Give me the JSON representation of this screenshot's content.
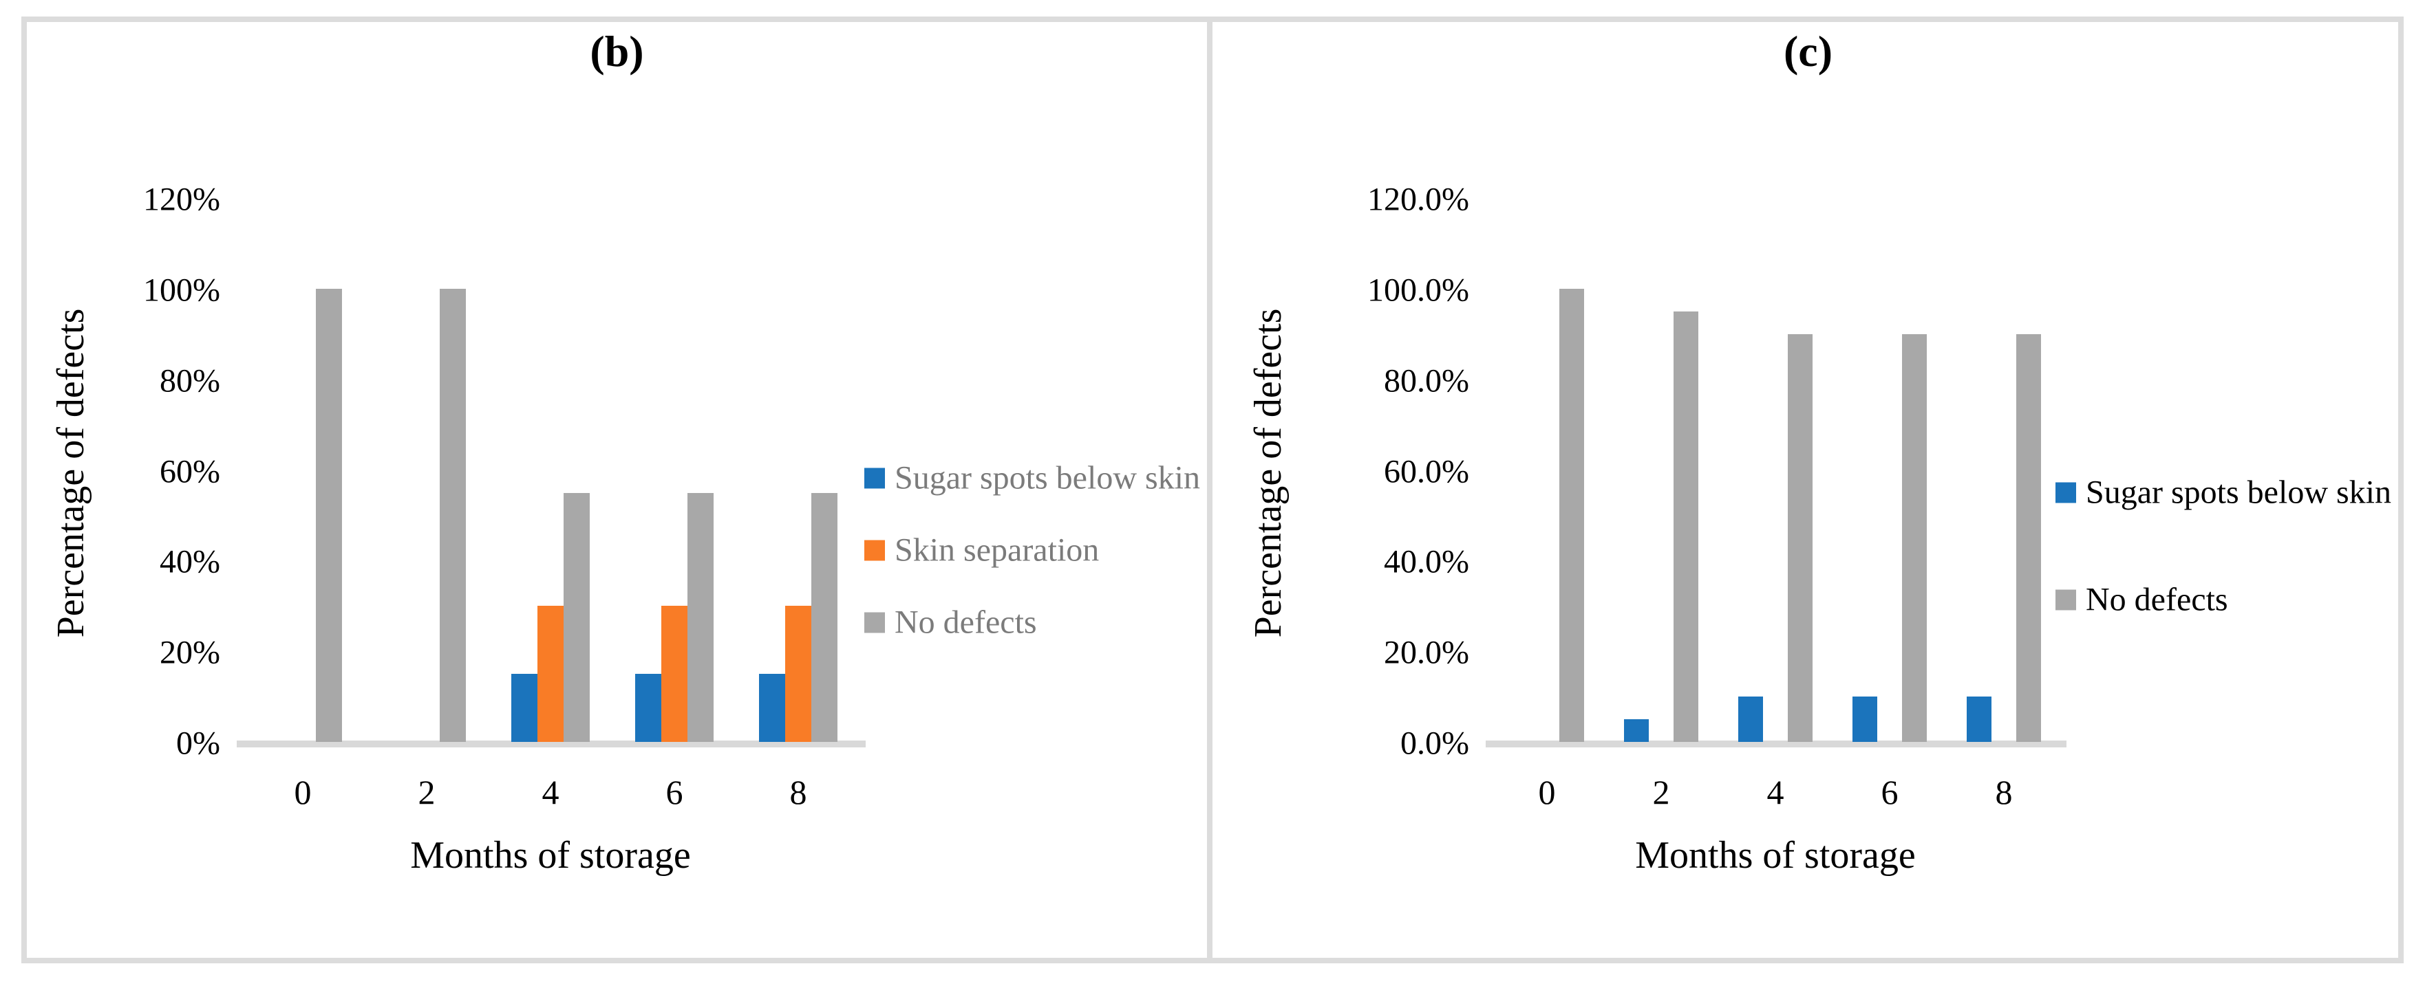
{
  "figure": {
    "border_color": "#dcdcdc",
    "axis_line_color": "#d9d9d9"
  },
  "chart_data": [
    {
      "type": "bar",
      "panel_label": "(b)",
      "title": "(b)",
      "xlabel": "Months of storage",
      "ylabel": "Percentage of defects",
      "categories": [
        "0",
        "2",
        "4",
        "6",
        "8"
      ],
      "series": [
        {
          "name": "Sugar spots below skin",
          "color": "#1b74bc",
          "values": [
            0,
            0,
            15,
            15,
            15
          ]
        },
        {
          "name": "Skin separation",
          "color": "#f97c26",
          "values": [
            0,
            0,
            30,
            30,
            30
          ]
        },
        {
          "name": "No defects",
          "color": "#a8a8a8",
          "values": [
            100,
            100,
            55,
            55,
            55
          ]
        }
      ],
      "ylim": [
        0,
        120
      ],
      "ytick_step": 20,
      "ytick_decimals": 0,
      "ytick_suffix": "%",
      "ytick_labels": [
        "0%",
        "20%",
        "40%",
        "60%",
        "80%",
        "100%",
        "120%"
      ],
      "grid": false,
      "legend_position": "right",
      "legend_text_color": "#7b7b7b"
    },
    {
      "type": "bar",
      "panel_label": "(c)",
      "title": "(c)",
      "xlabel": "Months of storage",
      "ylabel": "Percentage of defects",
      "categories": [
        "0",
        "2",
        "4",
        "6",
        "8"
      ],
      "series": [
        {
          "name": "Sugar spots below skin",
          "color": "#1b74bc",
          "values": [
            0,
            5,
            10,
            10,
            10
          ]
        },
        {
          "name": "No defects",
          "color": "#a8a8a8",
          "values": [
            100,
            95,
            90,
            90,
            90
          ]
        }
      ],
      "ylim": [
        0,
        120
      ],
      "ytick_step": 20,
      "ytick_decimals": 1,
      "ytick_suffix": "%",
      "ytick_labels": [
        "0.0%",
        "20.0%",
        "40.0%",
        "60.0%",
        "80.0%",
        "100.0%",
        "120.0%"
      ],
      "grid": false,
      "legend_position": "right",
      "legend_text_color": "#000000"
    }
  ]
}
